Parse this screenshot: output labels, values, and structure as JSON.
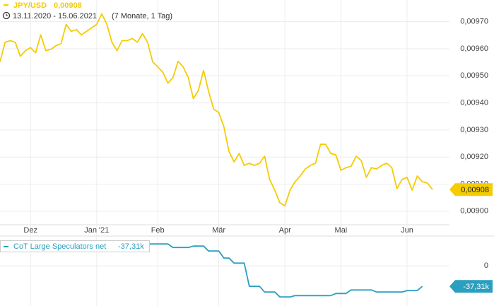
{
  "chart_data": [
    {
      "type": "line",
      "subtitle": "13.11.2020 - 15.06.2021",
      "subtitle_note": "(7 Monate, 1 Tag)",
      "categories": [
        null,
        null,
        null,
        null,
        null,
        null,
        "Dez",
        null,
        null,
        null,
        null,
        null,
        null,
        null,
        null,
        null,
        null,
        null,
        null,
        "Jan '21",
        null,
        null,
        null,
        null,
        null,
        null,
        null,
        null,
        null,
        null,
        null,
        "Feb",
        null,
        null,
        null,
        null,
        null,
        null,
        null,
        null,
        null,
        null,
        null,
        "Mär",
        null,
        null,
        null,
        null,
        null,
        null,
        null,
        null,
        null,
        null,
        null,
        null,
        "Apr",
        null,
        null,
        null,
        null,
        null,
        null,
        null,
        null,
        null,
        null,
        "Mai",
        null,
        null,
        null,
        null,
        null,
        null,
        null,
        null,
        null,
        null,
        null,
        null,
        "Jun",
        null,
        null,
        null,
        null,
        null
      ],
      "series": [
        {
          "name": "JPY/USD",
          "color": "#f5cc00",
          "last_label": "0,00908",
          "values": [
            0.009552,
            0.009624,
            0.00963,
            0.009624,
            0.009572,
            0.009593,
            0.009604,
            0.009585,
            0.009651,
            0.009593,
            0.009598,
            0.009611,
            0.009619,
            0.00969,
            0.009664,
            0.009671,
            0.009651,
            0.009664,
            0.009677,
            0.00969,
            0.009729,
            0.00969,
            0.009624,
            0.009593,
            0.00963,
            0.00963,
            0.009638,
            0.009624,
            0.009656,
            0.009624,
            0.009552,
            0.009533,
            0.009513,
            0.009473,
            0.009494,
            0.009554,
            0.009533,
            0.009494,
            0.009416,
            0.009447,
            0.00952,
            0.009442,
            0.009377,
            0.009364,
            0.009312,
            0.009221,
            0.009182,
            0.009213,
            0.009169,
            0.009177,
            0.009169,
            0.009177,
            0.009203,
            0.009117,
            0.009078,
            0.009031,
            0.00902,
            0.009078,
            0.009109,
            0.00913,
            0.009156,
            0.009169,
            0.009177,
            0.009247,
            0.009247,
            0.009213,
            0.009208,
            0.009151,
            0.009161,
            0.009166,
            0.009203,
            0.009187,
            0.009125,
            0.009161,
            0.009156,
            0.009169,
            0.009177,
            0.009161,
            0.009083,
            0.009117,
            0.009125,
            0.009078,
            0.00913,
            0.009109,
            0.009104,
            0.00908
          ]
        }
      ],
      "ylim": [
        0.00895,
        0.00978
      ],
      "yticks": [
        {
          "value": 0.009,
          "label": "0,00900"
        },
        {
          "value": 0.0091,
          "label": "0,00910"
        },
        {
          "value": 0.0092,
          "label": "0,00920"
        },
        {
          "value": 0.0093,
          "label": "0,00930"
        },
        {
          "value": 0.0094,
          "label": "0,00940"
        },
        {
          "value": 0.0095,
          "label": "0,00950"
        },
        {
          "value": 0.0096,
          "label": "0,00960"
        },
        {
          "value": 0.0097,
          "label": "0,00970"
        }
      ],
      "grid": true
    },
    {
      "type": "line",
      "series": [
        {
          "name": "CoT Large Speculators net",
          "color": "#2a9fc0",
          "last_label": "-37,31k",
          "values": [
            null,
            null,
            null,
            null,
            null,
            null,
            null,
            null,
            null,
            null,
            null,
            null,
            null,
            null,
            null,
            null,
            null,
            null,
            null,
            null,
            null,
            null,
            null,
            null,
            null,
            null,
            null,
            null,
            null,
            39.9,
            39.9,
            39.9,
            39.9,
            39.9,
            33.5,
            33.5,
            33.5,
            33.5,
            36,
            36,
            36,
            27,
            27,
            27,
            14.2,
            14.2,
            5.1,
            5.1,
            5.1,
            -37.3,
            -37.3,
            -37.3,
            -47.6,
            -47.6,
            -47.6,
            -56.6,
            -56.6,
            -56.6,
            -54.1,
            -54.1,
            -54.1,
            -54.1,
            -54.1,
            -54.1,
            -54.1,
            -54.1,
            -50.2,
            -50.2,
            -50.2,
            -43.8,
            -43.8,
            -43.8,
            -43.8,
            -43.8,
            -47.6,
            -47.6,
            -47.6,
            -47.6,
            -47.6,
            -47.6,
            -45,
            -45,
            -45,
            -37.31,
            null,
            null
          ]
        }
      ],
      "ylim": [
        -73,
        53
      ],
      "yticks": [
        0
      ],
      "grid": true
    }
  ]
}
